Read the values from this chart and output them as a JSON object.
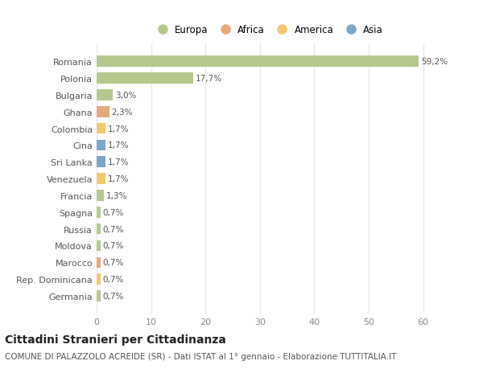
{
  "categories": [
    "Romania",
    "Polonia",
    "Bulgaria",
    "Ghana",
    "Colombia",
    "Cina",
    "Sri Lanka",
    "Venezuela",
    "Francia",
    "Spagna",
    "Russia",
    "Moldova",
    "Marocco",
    "Rep. Dominicana",
    "Germania"
  ],
  "values": [
    59.2,
    17.7,
    3.0,
    2.3,
    1.7,
    1.7,
    1.7,
    1.7,
    1.3,
    0.7,
    0.7,
    0.7,
    0.7,
    0.7,
    0.7
  ],
  "labels": [
    "59,2%",
    "17,7%",
    "3,0%",
    "2,3%",
    "1,7%",
    "1,7%",
    "1,7%",
    "1,7%",
    "1,3%",
    "0,7%",
    "0,7%",
    "0,7%",
    "0,7%",
    "0,7%",
    "0,7%"
  ],
  "bar_colors": [
    "#b5c98e",
    "#b5c98e",
    "#b5c98e",
    "#e8a87c",
    "#f0c96e",
    "#7ba7c9",
    "#7ba7c9",
    "#f0c96e",
    "#b5c98e",
    "#b5c98e",
    "#b5c98e",
    "#b5c98e",
    "#e8a87c",
    "#f0c96e",
    "#b5c98e"
  ],
  "legend_labels": [
    "Europa",
    "Africa",
    "America",
    "Asia"
  ],
  "legend_colors": [
    "#b5c98e",
    "#e8a87c",
    "#f0c96e",
    "#7ba7c9"
  ],
  "xlim": [
    0,
    63
  ],
  "xticks": [
    0,
    10,
    20,
    30,
    40,
    50,
    60
  ],
  "background_color": "#ffffff",
  "grid_color": "#e8e8e8",
  "title": "Cittadini Stranieri per Cittadinanza",
  "subtitle": "COMUNE DI PALAZZOLO ACREIDE (SR) - Dati ISTAT al 1° gennaio - Elaborazione TUTTITALIA.IT",
  "title_fontsize": 10,
  "subtitle_fontsize": 7.5,
  "bar_height": 0.65
}
